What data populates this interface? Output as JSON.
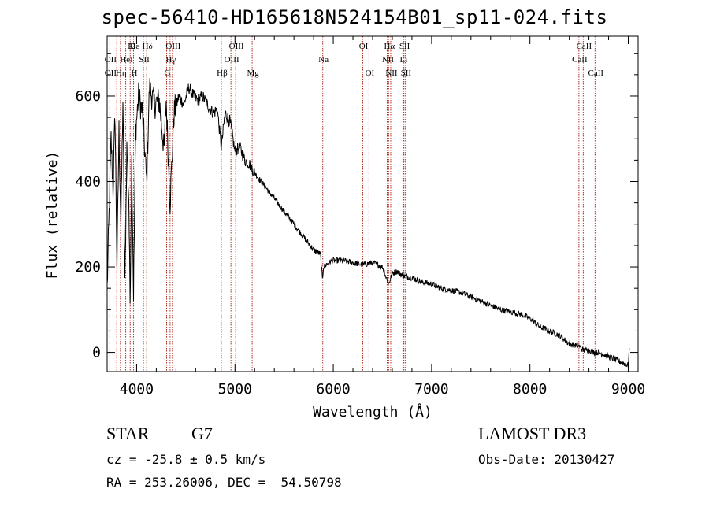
{
  "chart_data": {
    "type": "line",
    "title": "spec-56410-HD165618N524154B01_sp11-024.fits",
    "xlabel": "Wavelength (Å)",
    "ylabel": "Flux (relative)",
    "xlim": [
      3700,
      9100
    ],
    "ylim": [
      -45,
      740
    ],
    "xticks": [
      4000,
      5000,
      6000,
      7000,
      8000,
      9000
    ],
    "yticks": [
      0,
      200,
      400,
      600
    ],
    "grid": false,
    "series": [
      {
        "name": "flux",
        "x": [
          3700,
          3740,
          3760,
          3780,
          3800,
          3820,
          3840,
          3860,
          3880,
          3900,
          3920,
          3933,
          3950,
          3968,
          3990,
          4020,
          4060,
          4101,
          4130,
          4180,
          4230,
          4280,
          4300,
          4340,
          4380,
          4430,
          4480,
          4530,
          4580,
          4620,
          4670,
          4720,
          4780,
          4820,
          4861,
          4900,
          4950,
          5000,
          5050,
          5100,
          5150,
          5200,
          5300,
          5400,
          5500,
          5600,
          5700,
          5800,
          5870,
          5890,
          5900,
          5950,
          6000,
          6100,
          6200,
          6300,
          6400,
          6500,
          6563,
          6600,
          6650,
          6700,
          6800,
          6900,
          7000,
          7100,
          7200,
          7300,
          7400,
          7500,
          7600,
          7700,
          7800,
          7900,
          8000,
          8100,
          8200,
          8300,
          8400,
          8498,
          8542,
          8600,
          8662,
          8700,
          8800,
          8900,
          9000,
          9010
        ],
        "y": [
          150,
          500,
          380,
          560,
          200,
          520,
          300,
          590,
          150,
          480,
          360,
          120,
          450,
          140,
          520,
          600,
          560,
          400,
          620,
          580,
          590,
          470,
          590,
          350,
          560,
          600,
          580,
          620,
          600,
          590,
          600,
          580,
          560,
          570,
          480,
          560,
          540,
          470,
          480,
          450,
          440,
          420,
          390,
          360,
          330,
          300,
          270,
          240,
          230,
          170,
          200,
          210,
          215,
          215,
          210,
          205,
          210,
          200,
          160,
          185,
          190,
          180,
          175,
          165,
          160,
          150,
          145,
          140,
          130,
          120,
          110,
          100,
          95,
          90,
          80,
          60,
          50,
          40,
          20,
          15,
          5,
          5,
          0,
          0,
          -10,
          -20,
          -30,
          10
        ],
        "color": "#000000"
      }
    ],
    "line_markers": [
      {
        "label": "Hδ",
        "x": 4102,
        "row": 0
      },
      {
        "label": "K",
        "x": 3934,
        "row": 0
      },
      {
        "label": "Hε",
        "x": 3970,
        "row": 0
      },
      {
        "label": "OIII",
        "x": 4364,
        "row": 0
      },
      {
        "label": "OIII",
        "x": 5007,
        "row": 0
      },
      {
        "label": "OI",
        "x": 6300,
        "row": 0
      },
      {
        "label": "Hα",
        "x": 6563,
        "row": 0
      },
      {
        "label": "SII",
        "x": 6717,
        "row": 0
      },
      {
        "label": "CaII",
        "x": 8542,
        "row": 0
      },
      {
        "label": "OII",
        "x": 3727,
        "row": 1
      },
      {
        "label": "HeI",
        "x": 3889,
        "row": 1
      },
      {
        "label": "SII",
        "x": 4069,
        "row": 1
      },
      {
        "label": "Hγ",
        "x": 4340,
        "row": 1
      },
      {
        "label": "OIII",
        "x": 4959,
        "row": 1
      },
      {
        "label": "Na",
        "x": 5893,
        "row": 1
      },
      {
        "label": "NII",
        "x": 6548,
        "row": 1
      },
      {
        "label": "Li",
        "x": 6708,
        "row": 1
      },
      {
        "label": "CaII",
        "x": 8498,
        "row": 1
      },
      {
        "label": "OII",
        "x": 3727,
        "row": 2
      },
      {
        "label": "Hη",
        "x": 3835,
        "row": 2
      },
      {
        "label": "H",
        "x": 3968,
        "row": 2
      },
      {
        "label": "G",
        "x": 4305,
        "row": 2
      },
      {
        "label": "Hβ",
        "x": 4861,
        "row": 2
      },
      {
        "label": "Mg",
        "x": 5175,
        "row": 2
      },
      {
        "label": "OI",
        "x": 6363,
        "row": 2
      },
      {
        "label": "NII",
        "x": 6584,
        "row": 2
      },
      {
        "label": "SII",
        "x": 6731,
        "row": 2
      },
      {
        "label": "CaII",
        "x": 8662,
        "row": 2
      }
    ],
    "marker_lines_x": [
      3727,
      3798,
      3835,
      3889,
      3934,
      3968,
      4069,
      4102,
      4305,
      4340,
      4364,
      4861,
      4959,
      5007,
      5175,
      5893,
      6300,
      6363,
      6548,
      6563,
      6584,
      6708,
      6717,
      6731,
      8498,
      8542,
      8662
    ]
  },
  "info": {
    "object_class": "STAR",
    "subclass": "G7",
    "survey": "LAMOST DR3",
    "cz": "cz = -25.8 ± 0.5 km/s",
    "obs_date": "Obs-Date: 20130427",
    "coords": "RA = 253.26006, DEC =  54.50798"
  },
  "colors": {
    "marker_line": "#b03020",
    "spectrum": "#000000",
    "axis": "#000000"
  }
}
